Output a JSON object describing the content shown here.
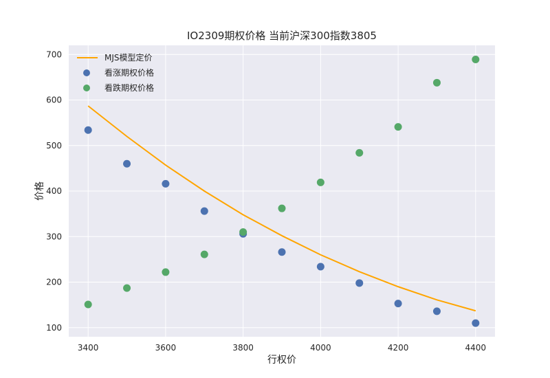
{
  "chart_data": {
    "type": "line+scatter",
    "title": "IO2309期权价格 当前沪深300指数3805",
    "xlabel": "行权价",
    "ylabel": "价格",
    "xlim": [
      3350,
      4450
    ],
    "ylim": [
      80,
      720
    ],
    "x_ticks": [
      3400,
      3600,
      3800,
      4000,
      4200,
      4400
    ],
    "y_ticks": [
      100,
      200,
      300,
      400,
      500,
      600,
      700
    ],
    "grid": true,
    "legend_position": "upper-left",
    "x": [
      3400,
      3500,
      3600,
      3700,
      3800,
      3900,
      4000,
      4100,
      4200,
      4300,
      4400
    ],
    "series": [
      {
        "name": "MJS模型定价",
        "kind": "line",
        "color": "#FFA500",
        "values": [
          587,
          520,
          457,
          400,
          348,
          302,
          260,
          223,
          190,
          161,
          137
        ]
      },
      {
        "name": "看涨期权价格",
        "kind": "scatter",
        "color": "#4C72B0",
        "values": [
          534,
          460,
          416,
          356,
          306,
          266,
          234,
          198,
          153,
          136,
          110
        ]
      },
      {
        "name": "看跌期权价格",
        "kind": "scatter",
        "color": "#55A868",
        "values": [
          151,
          187,
          222,
          261,
          310,
          362,
          419,
          484,
          541,
          638,
          689
        ]
      }
    ]
  }
}
